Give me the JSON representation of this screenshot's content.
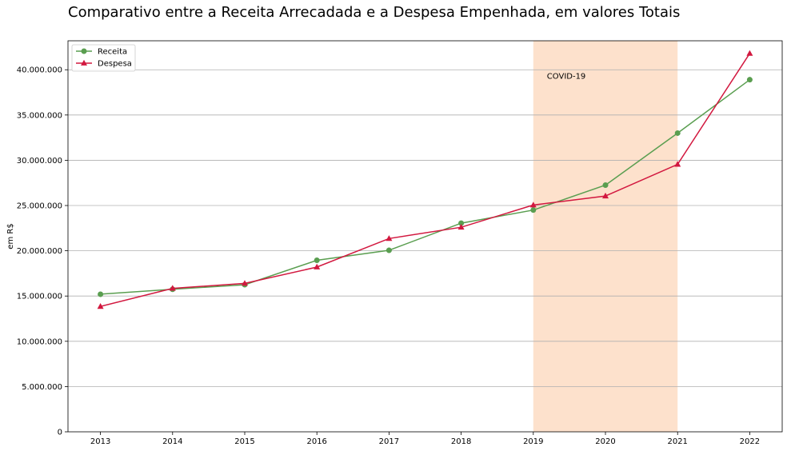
{
  "chart_data": {
    "type": "line",
    "title": "Comparativo entre a Receita Arrecadada e a Despesa Empenhada, em valores Totais",
    "xlabel": "",
    "ylabel": "em R$",
    "x": [
      2013,
      2014,
      2015,
      2016,
      2017,
      2018,
      2019,
      2020,
      2021,
      2022
    ],
    "x_tick_labels": [
      "2013",
      "2014",
      "2015",
      "2016",
      "2017",
      "2018",
      "2019",
      "2020",
      "2021",
      "2022"
    ],
    "xlim": [
      2012.55,
      2022.45
    ],
    "ylim": [
      0,
      43200000
    ],
    "y_ticks": [
      0,
      5000000,
      10000000,
      15000000,
      20000000,
      25000000,
      30000000,
      35000000,
      40000000
    ],
    "y_tick_labels": [
      "0",
      "5.000.000",
      "10.000.000",
      "15.000.000",
      "20.000.000",
      "25.000.000",
      "30.000.000",
      "35.000.000",
      "40.000.000"
    ],
    "grid": "horizontal",
    "legend_position": "upper-left",
    "series": [
      {
        "name": "Receita",
        "color": "#5a9e50",
        "marker": "circle",
        "values": [
          15200000,
          15750000,
          16250000,
          18950000,
          20050000,
          23050000,
          24500000,
          27250000,
          33000000,
          38900000
        ]
      },
      {
        "name": "Despesa",
        "color": "#d2183f",
        "marker": "triangle",
        "values": [
          13850000,
          15850000,
          16400000,
          18200000,
          21350000,
          22600000,
          25050000,
          26050000,
          29550000,
          41800000
        ]
      }
    ],
    "shaded_region": {
      "x_start": 2019,
      "x_end": 2021,
      "color": "#fde1cc",
      "label": "COVID-19"
    }
  }
}
